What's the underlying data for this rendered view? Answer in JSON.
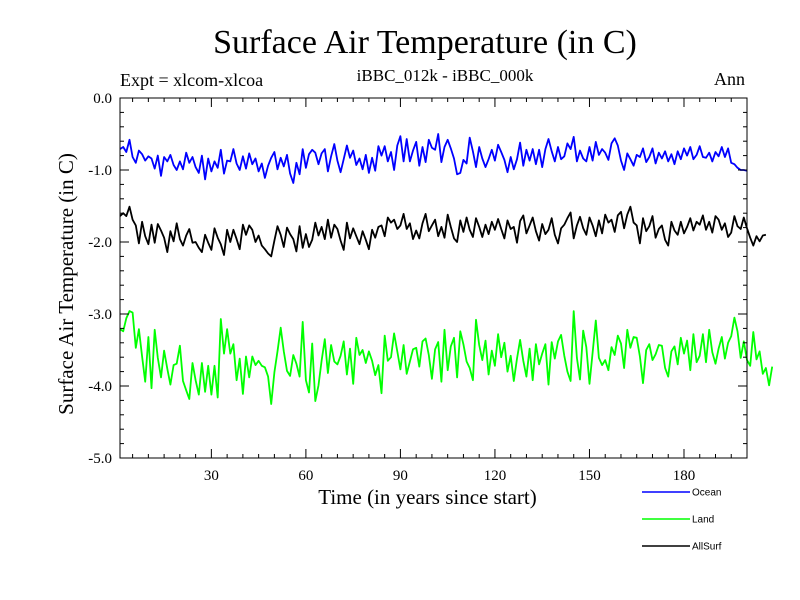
{
  "header": {
    "title": "Surface Air Temperature (in C)",
    "experiment": "Expt = xlcom-xlcoa",
    "subtitle": "iBBC_012k - iBBC_000k",
    "period": "Ann"
  },
  "chart_data": {
    "type": "line",
    "title": "Surface Air Temperature (in C)",
    "xlabel": "Time (in years since start)",
    "ylabel": "Surface Air Temperature (in C)",
    "xlim": [
      1,
      200
    ],
    "ylim": [
      -5.0,
      0.0
    ],
    "xticks": [
      30,
      60,
      90,
      120,
      150,
      180
    ],
    "xtick_labels": [
      "30",
      "60",
      "90",
      "120",
      "150",
      "180"
    ],
    "yticks": [
      0,
      -1,
      -2,
      -3,
      -4,
      -5
    ],
    "ytick_labels": [
      "0.0",
      "-1.0",
      "-2.0",
      "-3.0",
      "-4.0",
      "-5.0"
    ],
    "legend_position": "bottom-right",
    "series": [
      {
        "name": "Ocean",
        "color": "#0000ff",
        "values": [
          -0.71,
          -0.68,
          -0.75,
          -0.58,
          -0.82,
          -0.9,
          -0.73,
          -0.78,
          -0.87,
          -0.81,
          -0.84,
          -0.98,
          -0.8,
          -1.08,
          -0.82,
          -0.88,
          -0.79,
          -0.93,
          -1.0,
          -0.88,
          -0.99,
          -0.76,
          -0.9,
          -0.82,
          -0.96,
          -1.04,
          -0.8,
          -1.13,
          -0.84,
          -1.02,
          -0.88,
          -0.97,
          -0.72,
          -1.05,
          -0.87,
          -0.88,
          -0.71,
          -0.91,
          -1.0,
          -0.81,
          -0.98,
          -0.77,
          -0.92,
          -0.84,
          -1.02,
          -0.91,
          -1.11,
          -0.94,
          -0.83,
          -0.75,
          -0.99,
          -0.83,
          -0.95,
          -0.79,
          -1.05,
          -1.18,
          -0.9,
          -1.06,
          -0.71,
          -0.97,
          -0.78,
          -0.72,
          -0.76,
          -0.92,
          -0.77,
          -0.71,
          -1.02,
          -0.81,
          -0.64,
          -0.87,
          -1.03,
          -0.85,
          -0.66,
          -0.83,
          -0.73,
          -0.93,
          -0.84,
          -0.99,
          -0.79,
          -1.04,
          -0.83,
          -1.01,
          -0.67,
          -0.8,
          -0.67,
          -0.88,
          -0.75,
          -1.0,
          -0.66,
          -0.53,
          -0.88,
          -0.57,
          -0.88,
          -0.73,
          -0.61,
          -0.94,
          -0.68,
          -0.89,
          -0.58,
          -0.69,
          -0.72,
          -0.5,
          -0.89,
          -0.68,
          -0.58,
          -0.7,
          -0.84,
          -1.06,
          -1.04,
          -0.86,
          -0.91,
          -0.55,
          -0.74,
          -0.96,
          -0.68,
          -0.84,
          -0.96,
          -0.85,
          -0.72,
          -0.87,
          -0.65,
          -0.75,
          -0.86,
          -1.03,
          -0.82,
          -0.99,
          -0.85,
          -0.62,
          -0.94,
          -0.72,
          -0.87,
          -0.71,
          -0.92,
          -0.72,
          -0.96,
          -0.71,
          -0.57,
          -0.74,
          -0.88,
          -0.68,
          -0.85,
          -0.81,
          -0.63,
          -0.71,
          -0.54,
          -0.88,
          -0.73,
          -0.84,
          -0.88,
          -0.68,
          -0.87,
          -0.61,
          -0.79,
          -0.71,
          -0.76,
          -0.86,
          -0.63,
          -0.56,
          -0.66,
          -0.87,
          -1.0,
          -0.77,
          -0.85,
          -0.94,
          -0.79,
          -0.82,
          -0.7,
          -0.89,
          -0.82,
          -0.7,
          -0.91,
          -0.76,
          -0.84,
          -0.74,
          -0.88,
          -0.78,
          -0.92,
          -0.74,
          -0.85,
          -0.7,
          -0.8,
          -0.68,
          -0.85,
          -0.79,
          -0.67,
          -0.82,
          -0.83,
          -0.76,
          -0.88,
          -0.75,
          -0.81,
          -0.68,
          -0.82,
          -0.7,
          -0.9,
          -0.92,
          -0.97,
          -1.0,
          -1.0,
          -1.01
        ]
      },
      {
        "name": "Land",
        "color": "#00ff00",
        "values": [
          -3.21,
          -3.24,
          -3.06,
          -2.96,
          -2.98,
          -3.47,
          -3.21,
          -3.59,
          -3.94,
          -3.32,
          -4.03,
          -3.22,
          -3.61,
          -3.88,
          -3.51,
          -3.76,
          -3.98,
          -3.71,
          -3.69,
          -3.44,
          -3.93,
          -4.06,
          -4.18,
          -3.68,
          -3.92,
          -4.12,
          -3.68,
          -4.08,
          -3.72,
          -4.12,
          -3.72,
          -4.16,
          -3.07,
          -3.55,
          -3.21,
          -3.55,
          -3.42,
          -3.92,
          -3.62,
          -4.11,
          -3.59,
          -3.88,
          -3.59,
          -3.71,
          -3.65,
          -3.72,
          -3.74,
          -3.87,
          -4.25,
          -3.81,
          -3.52,
          -3.19,
          -3.52,
          -3.79,
          -3.86,
          -3.57,
          -3.69,
          -3.87,
          -3.11,
          -3.92,
          -4.09,
          -3.41,
          -4.21,
          -3.99,
          -3.65,
          -3.35,
          -3.82,
          -3.43,
          -3.66,
          -3.7,
          -3.58,
          -3.38,
          -3.84,
          -3.48,
          -3.97,
          -3.33,
          -3.57,
          -3.5,
          -3.68,
          -3.52,
          -3.65,
          -3.85,
          -3.71,
          -4.1,
          -3.3,
          -3.65,
          -3.6,
          -3.27,
          -3.52,
          -3.77,
          -3.43,
          -3.83,
          -3.66,
          -3.49,
          -3.47,
          -3.73,
          -3.38,
          -3.34,
          -3.57,
          -3.9,
          -3.49,
          -3.39,
          -3.94,
          -3.22,
          -3.78,
          -3.45,
          -3.33,
          -3.88,
          -3.24,
          -3.42,
          -3.66,
          -3.75,
          -3.92,
          -3.08,
          -3.43,
          -3.64,
          -3.37,
          -3.84,
          -3.51,
          -3.72,
          -3.28,
          -3.6,
          -3.4,
          -3.8,
          -3.58,
          -3.93,
          -3.62,
          -3.36,
          -3.65,
          -3.87,
          -3.48,
          -3.92,
          -3.42,
          -3.7,
          -3.55,
          -3.42,
          -3.98,
          -3.39,
          -3.62,
          -3.38,
          -3.29,
          -3.58,
          -3.8,
          -3.93,
          -2.96,
          -3.61,
          -3.91,
          -3.23,
          -3.46,
          -3.97,
          -3.54,
          -3.09,
          -3.61,
          -3.71,
          -3.64,
          -3.78,
          -3.46,
          -3.57,
          -3.3,
          -3.41,
          -3.75,
          -3.22,
          -3.47,
          -3.32,
          -3.33,
          -3.59,
          -3.96,
          -3.5,
          -3.42,
          -3.64,
          -3.56,
          -3.43,
          -3.44,
          -3.75,
          -3.87,
          -3.52,
          -3.45,
          -3.7,
          -3.33,
          -3.55,
          -3.37,
          -3.78,
          -3.28,
          -3.67,
          -3.58,
          -3.28,
          -3.67,
          -3.22,
          -3.53,
          -3.69,
          -3.48,
          -3.32,
          -3.62,
          -3.4,
          -3.31,
          -3.05,
          -3.24,
          -3.61,
          -3.38,
          -3.64,
          -3.72,
          -3.25,
          -3.63,
          -3.52,
          -3.83,
          -3.75,
          -3.99,
          -3.73
        ]
      },
      {
        "name": "AllSurf",
        "color": "#000000",
        "values": [
          -1.64,
          -1.6,
          -1.64,
          -1.51,
          -1.69,
          -1.77,
          -2.02,
          -1.72,
          -1.92,
          -2.03,
          -1.76,
          -2.01,
          -1.75,
          -1.84,
          -1.94,
          -2.14,
          -1.85,
          -1.99,
          -1.74,
          -1.96,
          -2.05,
          -1.91,
          -1.82,
          -2.01,
          -2.0,
          -2.08,
          -2.14,
          -1.9,
          -2.01,
          -2.11,
          -1.81,
          -1.94,
          -2.03,
          -2.18,
          -1.83,
          -2.0,
          -1.83,
          -1.96,
          -2.1,
          -1.76,
          -1.9,
          -1.77,
          -1.83,
          -2.0,
          -1.91,
          -2.05,
          -2.1,
          -2.16,
          -2.2,
          -1.98,
          -1.78,
          -1.9,
          -2.07,
          -1.8,
          -1.89,
          -1.96,
          -2.13,
          -1.78,
          -2.08,
          -1.89,
          -2.07,
          -1.97,
          -1.73,
          -1.91,
          -1.79,
          -1.96,
          -1.69,
          -1.94,
          -1.76,
          -1.82,
          -1.98,
          -2.11,
          -1.73,
          -1.95,
          -1.81,
          -1.92,
          -2.03,
          -1.85,
          -1.97,
          -2.1,
          -1.83,
          -1.94,
          -1.79,
          -1.77,
          -1.92,
          -1.66,
          -1.73,
          -1.69,
          -1.82,
          -1.77,
          -1.61,
          -1.82,
          -1.74,
          -1.96,
          -1.84,
          -1.95,
          -1.74,
          -1.61,
          -1.85,
          -1.77,
          -1.69,
          -1.92,
          -1.79,
          -1.94,
          -1.62,
          -1.79,
          -1.95,
          -2.0,
          -1.7,
          -1.86,
          -1.66,
          -1.83,
          -1.93,
          -1.67,
          -1.79,
          -1.93,
          -1.76,
          -1.89,
          -1.72,
          -1.83,
          -1.68,
          -1.82,
          -1.95,
          -1.7,
          -1.82,
          -1.79,
          -2.01,
          -1.71,
          -1.63,
          -1.88,
          -1.77,
          -1.66,
          -1.85,
          -1.98,
          -1.75,
          -1.89,
          -1.83,
          -1.67,
          -1.9,
          -2.02,
          -1.81,
          -1.76,
          -1.67,
          -1.59,
          -1.95,
          -1.77,
          -1.65,
          -1.81,
          -1.9,
          -1.66,
          -1.77,
          -1.92,
          -1.7,
          -1.88,
          -1.62,
          -1.73,
          -1.69,
          -1.86,
          -1.63,
          -1.58,
          -1.81,
          -1.62,
          -1.51,
          -1.73,
          -1.77,
          -2.02,
          -1.67,
          -1.85,
          -1.78,
          -1.64,
          -1.94,
          -1.82,
          -1.77,
          -1.97,
          -2.05,
          -1.72,
          -1.84,
          -1.9,
          -1.72,
          -1.88,
          -1.79,
          -1.67,
          -1.84,
          -1.72,
          -1.76,
          -1.63,
          -1.83,
          -1.72,
          -1.87,
          -1.64,
          -1.69,
          -1.83,
          -1.74,
          -1.93,
          -1.87,
          -1.64,
          -1.78,
          -1.82,
          -1.66,
          -1.81,
          -1.94,
          -2.05,
          -1.92,
          -1.99,
          -1.91,
          -1.9
        ]
      }
    ]
  }
}
